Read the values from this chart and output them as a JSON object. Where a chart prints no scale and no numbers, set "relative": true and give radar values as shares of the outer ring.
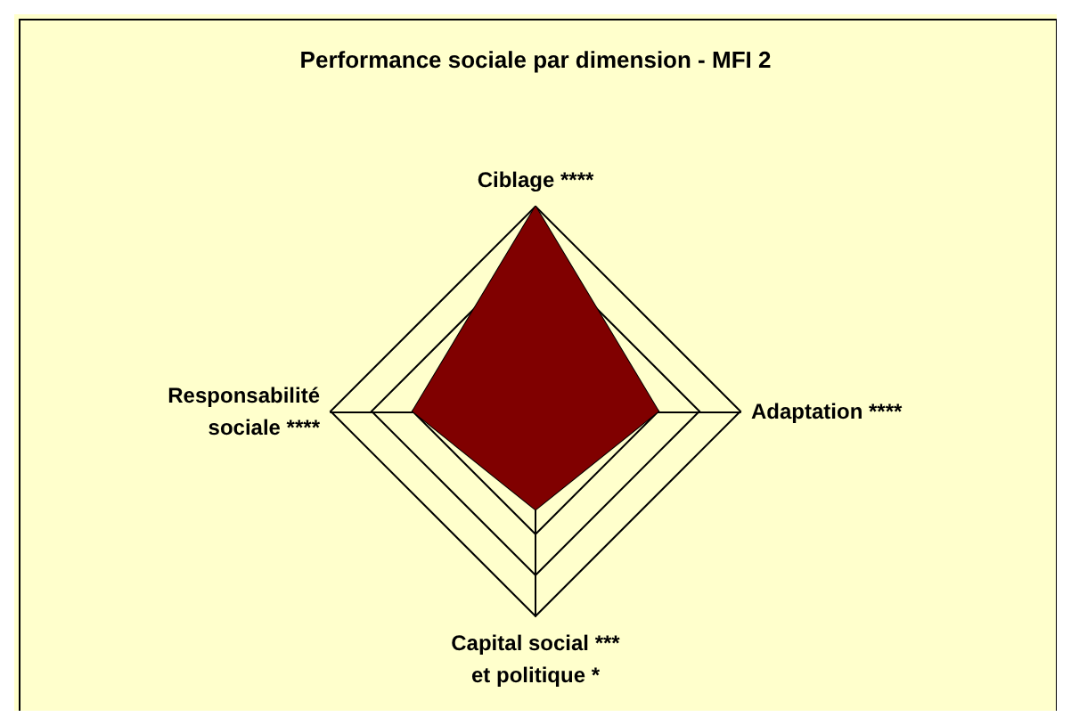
{
  "chart_data": {
    "type": "radar",
    "title": "Performance sociale par dimension - MFI 2",
    "relative": true,
    "categories": [
      "Ciblage ****",
      "Adaptation ****",
      "Capital social ***\net politique *",
      "Responsabilité\nsociale ****"
    ],
    "series": [
      {
        "color": "#800000",
        "values": [
          1,
          0.6,
          0.48,
          0.6
        ]
      }
    ],
    "legend": false,
    "marker": "none"
  }
}
